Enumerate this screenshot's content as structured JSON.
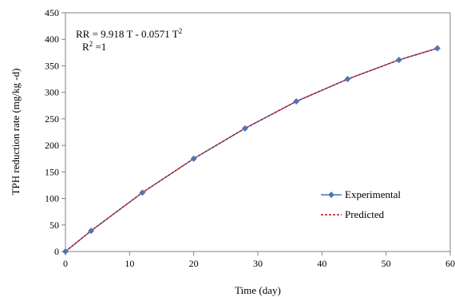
{
  "chart_data": {
    "type": "line",
    "x": [
      0,
      4,
      12,
      20,
      28,
      36,
      44,
      52,
      58
    ],
    "series": [
      {
        "name": "Experimental",
        "values": [
          0,
          39,
          111,
          175,
          232,
          283,
          325,
          361,
          383
        ],
        "color": "#4f74b3",
        "marker": "diamond"
      },
      {
        "name": "Predicted",
        "values": [
          0,
          39,
          111,
          175,
          232,
          283,
          325,
          361,
          383
        ],
        "color": "#c0141e",
        "line": "dashed"
      }
    ],
    "xlabel": "Time (day)",
    "ylabel": "TPH reduction rate (mg/kg -d)",
    "xlim": [
      0,
      60
    ],
    "ylim": [
      0,
      450
    ],
    "xticks": [
      "0",
      "10",
      "20",
      "30",
      "40",
      "50",
      "60"
    ],
    "yticks": [
      "0",
      "50",
      "100",
      "150",
      "200",
      "250",
      "300",
      "350",
      "400",
      "450"
    ],
    "grid": false,
    "legend_position": "bottom-right",
    "annotations": {
      "equation_main": "RR = 9.918 T - 0.0571 T",
      "equation_sup": "2",
      "r2_base": "R",
      "r2_sup": "2",
      "r2_rest": " =1"
    }
  }
}
